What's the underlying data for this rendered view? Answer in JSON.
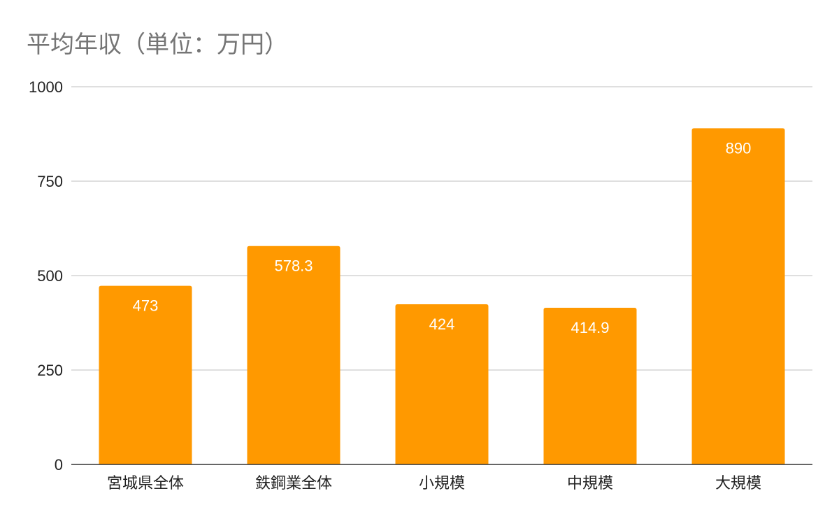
{
  "chart_data": {
    "type": "bar",
    "title": "平均年収（単位：万円）",
    "xlabel": "",
    "ylabel": "",
    "categories": [
      "宮城県全体",
      "鉄鋼業全体",
      "小規模",
      "中規模",
      "大規模"
    ],
    "values": [
      473,
      578.3,
      424,
      414.9,
      890
    ],
    "data_labels": [
      "473",
      "578.3",
      "424",
      "414.9",
      "890"
    ],
    "ylim": [
      0,
      1000
    ],
    "yticks": [
      0,
      250,
      500,
      750,
      1000
    ],
    "ytick_labels": [
      "0",
      "250",
      "500",
      "750",
      "1000"
    ],
    "grid": true,
    "legend": "none",
    "colors": {
      "bar": "#ff9900",
      "data_label": "#ffffff",
      "grid": "#cccccc",
      "axis": "#333333",
      "tick_label": "#222222",
      "title": "#757575"
    }
  }
}
